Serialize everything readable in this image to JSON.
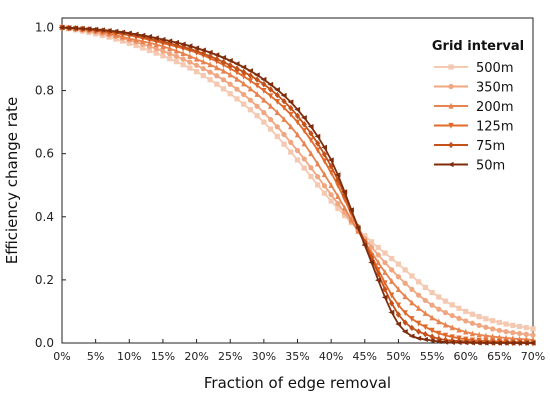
{
  "chart_data": {
    "type": "line",
    "xlabel": "Fraction of edge removal",
    "ylabel": "Efficiency change rate",
    "xlim": [
      0,
      70
    ],
    "ylim": [
      0,
      1.03
    ],
    "x_ticks": [
      "0%",
      "5%",
      "10%",
      "15%",
      "20%",
      "25%",
      "30%",
      "35%",
      "40%",
      "45%",
      "50%",
      "55%",
      "60%",
      "65%",
      "70%"
    ],
    "y_ticks": [
      "0.0",
      "0.2",
      "0.4",
      "0.6",
      "0.8",
      "1.0"
    ],
    "legend_title": "Grid interval",
    "legend_position": "top-right",
    "grid": false,
    "x": [
      0,
      5,
      10,
      15,
      20,
      25,
      30,
      35,
      40,
      45,
      50,
      55,
      60,
      65,
      70
    ],
    "series": [
      {
        "name": "500m",
        "color": "#f5c9b1",
        "marker": "square",
        "values": [
          1.0,
          0.98,
          0.95,
          0.91,
          0.86,
          0.79,
          0.7,
          0.58,
          0.45,
          0.34,
          0.25,
          0.16,
          0.1,
          0.065,
          0.045
        ]
      },
      {
        "name": "350m",
        "color": "#f0a680",
        "marker": "circle",
        "values": [
          1.0,
          0.985,
          0.96,
          0.925,
          0.88,
          0.82,
          0.73,
          0.61,
          0.47,
          0.33,
          0.21,
          0.12,
          0.07,
          0.04,
          0.025
        ]
      },
      {
        "name": "200m",
        "color": "#e8834f",
        "marker": "triangle-up",
        "values": [
          1.0,
          0.99,
          0.965,
          0.94,
          0.9,
          0.85,
          0.77,
          0.66,
          0.5,
          0.32,
          0.17,
          0.08,
          0.035,
          0.018,
          0.01
        ]
      },
      {
        "name": "125m",
        "color": "#e06a2c",
        "marker": "triangle-down",
        "values": [
          1.0,
          0.99,
          0.975,
          0.95,
          0.92,
          0.87,
          0.8,
          0.7,
          0.54,
          0.32,
          0.12,
          0.04,
          0.012,
          0.005,
          0.002
        ]
      },
      {
        "name": "75m",
        "color": "#c4501a",
        "marker": "diamond",
        "values": [
          1.0,
          0.992,
          0.978,
          0.955,
          0.925,
          0.88,
          0.82,
          0.72,
          0.56,
          0.32,
          0.09,
          0.02,
          0.005,
          0.001,
          0.0
        ]
      },
      {
        "name": "50m",
        "color": "#7f2d0c",
        "marker": "triangle-left",
        "values": [
          1.0,
          0.994,
          0.982,
          0.962,
          0.935,
          0.895,
          0.835,
          0.74,
          0.58,
          0.31,
          0.06,
          0.008,
          0.001,
          0.0,
          0.0
        ]
      }
    ]
  }
}
